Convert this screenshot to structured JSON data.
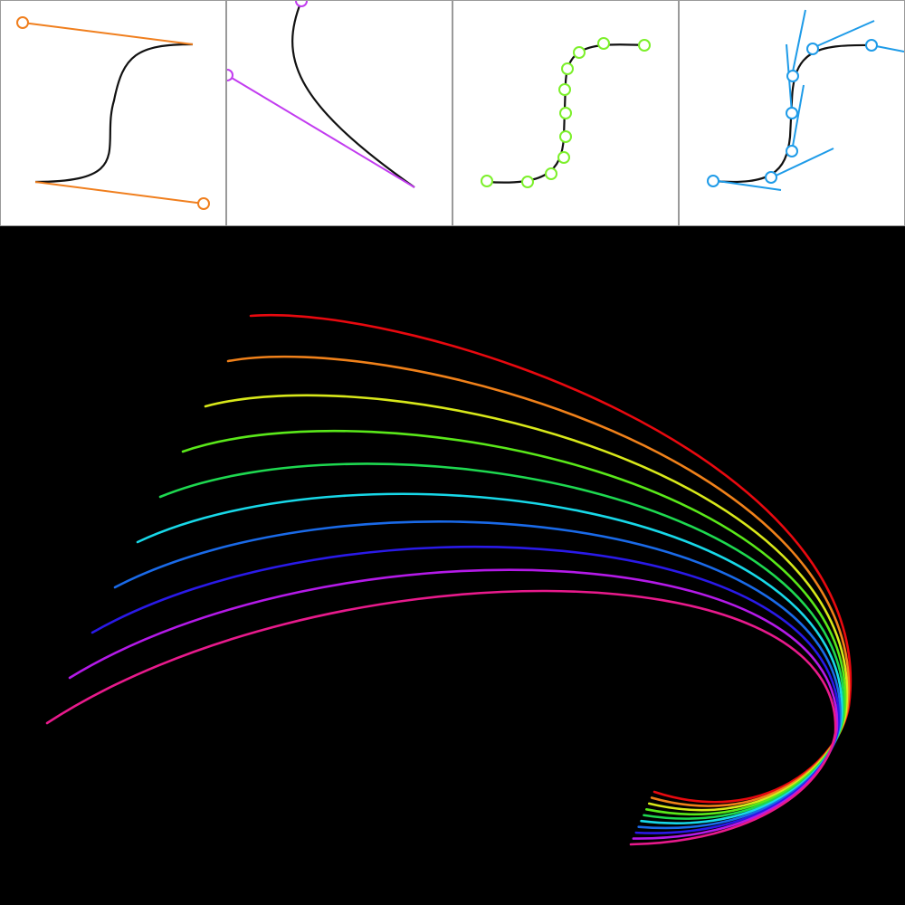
{
  "colors": {
    "panel_background": "#ffffff",
    "panel_border": "#9a9a9a",
    "curve": "#111111",
    "bezier_handles": "#f07f1e",
    "tangent_handle": "#c23cf0",
    "sample_points": "#7cf02a",
    "derivative_points": "#1e9be8",
    "canvas_background": "#000000"
  },
  "panels": [
    {
      "id": "bezier-control-handles",
      "icon": "orange-handle-icon"
    },
    {
      "id": "single-tangent-handle",
      "icon": "purple-handle-icon"
    },
    {
      "id": "sample-points",
      "icon": "green-point-icon"
    },
    {
      "id": "tangent-lines",
      "icon": "blue-tangent-icon"
    }
  ],
  "rainbow": {
    "strokes": [
      "#e8090f",
      "#f0811a",
      "#d8e81a",
      "#5ae81a",
      "#1ed850",
      "#18d8e8",
      "#1a6ae8",
      "#2a1ae8",
      "#b41ae8",
      "#e81a8c"
    ]
  }
}
